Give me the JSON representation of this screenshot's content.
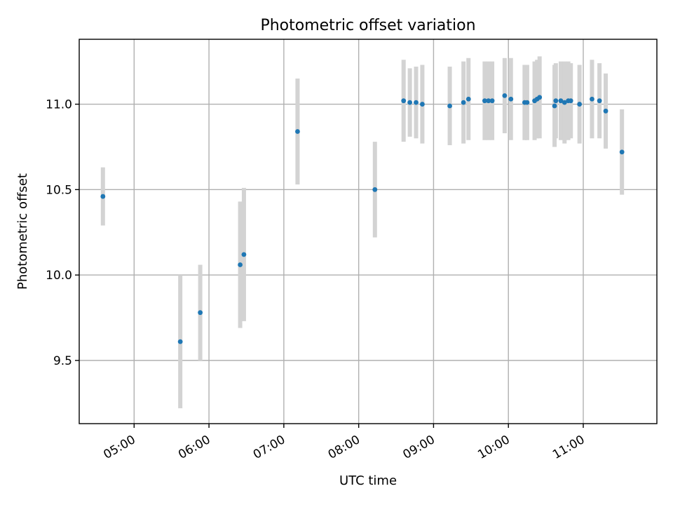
{
  "chart_data": {
    "type": "scatter",
    "title": "Photometric offset variation",
    "xlabel": "UTC time",
    "ylabel": "Photometric offset",
    "x_ticks": [
      "05:00",
      "06:00",
      "07:00",
      "08:00",
      "09:00",
      "10:00",
      "11:00"
    ],
    "y_ticks": [
      9.5,
      10.0,
      10.5,
      11.0
    ],
    "xlim": [
      "04:16",
      "11:59"
    ],
    "ylim": [
      9.13,
      11.38
    ],
    "grid": true,
    "colors": {
      "points": "#1f77b4",
      "error_bars": "#d3d3d3"
    },
    "series": [
      {
        "x": [
          "04:35",
          "05:37",
          "05:53",
          "06:25",
          "06:28",
          "07:11",
          "08:13",
          "08:36",
          "08:41",
          "08:46",
          "08:51",
          "09:13",
          "09:24",
          "09:28",
          "09:41",
          "09:44",
          "09:47",
          "09:57",
          "10:02",
          "10:13",
          "10:15",
          "10:21",
          "10:23",
          "10:25",
          "10:37",
          "10:38",
          "10:42",
          "10:45",
          "10:48",
          "10:50",
          "10:57",
          "11:07",
          "11:13",
          "11:18",
          "11:31"
        ],
        "y": [
          10.46,
          9.61,
          9.78,
          10.06,
          10.12,
          10.84,
          10.5,
          11.02,
          11.01,
          11.01,
          11.0,
          10.99,
          11.01,
          11.03,
          11.02,
          11.02,
          11.02,
          11.05,
          11.03,
          11.01,
          11.01,
          11.02,
          11.03,
          11.04,
          10.99,
          11.02,
          11.02,
          11.01,
          11.02,
          11.02,
          11.0,
          11.03,
          11.02,
          10.96,
          10.72
        ],
        "err": [
          0.17,
          0.39,
          0.28,
          0.37,
          0.39,
          0.31,
          0.28,
          0.24,
          0.2,
          0.21,
          0.23,
          0.23,
          0.24,
          0.24,
          0.23,
          0.23,
          0.23,
          0.22,
          0.24,
          0.22,
          0.22,
          0.23,
          0.23,
          0.24,
          0.24,
          0.22,
          0.23,
          0.24,
          0.23,
          0.22,
          0.23,
          0.23,
          0.22,
          0.22,
          0.25
        ]
      }
    ]
  }
}
